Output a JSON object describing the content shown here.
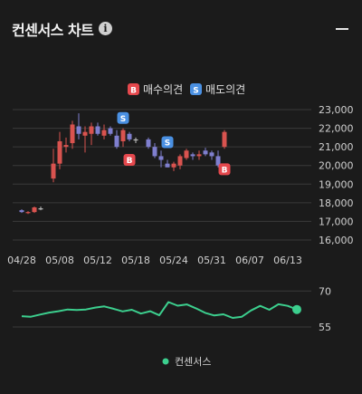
{
  "header": {
    "title": "컨센서스 차트",
    "info_icon": "info-icon",
    "collapse_icon": "minus-icon"
  },
  "colors": {
    "background": "#1b1b1b",
    "up": "#d9534f",
    "down": "#7f7fcf",
    "neutral": "#bdbdbd",
    "buy_marker": "#e5484d",
    "sell_marker": "#4a90e2",
    "consensus_line": "#3ccf8e",
    "grid": "#3a3a3a",
    "axis_text": "#d0d0d0"
  },
  "legend_top": [
    {
      "marker": "B",
      "label": "매수의견"
    },
    {
      "marker": "S",
      "label": "매도의견"
    }
  ],
  "legend_bottom": [
    {
      "label": "컨센서스"
    }
  ],
  "chart_data": [
    {
      "type": "candlestick",
      "y_ticks": [
        "23,000",
        "22,000",
        "21,000",
        "20,000",
        "19,000",
        "18,000",
        "17,000",
        "16,000"
      ],
      "y_tick_values": [
        23000,
        22000,
        21000,
        20000,
        19000,
        18000,
        17000,
        16000
      ],
      "ylim": [
        16000,
        23000
      ],
      "x_ticks": [
        "04/28",
        "05/08",
        "05/12",
        "05/18",
        "05/24",
        "05/31",
        "06/07",
        "06/13"
      ],
      "x_tick_index": [
        0,
        6,
        12,
        18,
        24,
        30,
        36,
        42
      ],
      "grid": true,
      "candles": [
        {
          "o": 17600,
          "h": 17650,
          "l": 17450,
          "c": 17500
        },
        {
          "o": 17450,
          "h": 17550,
          "l": 17400,
          "c": 17500
        },
        {
          "o": 17500,
          "h": 17800,
          "l": 17450,
          "c": 17750
        },
        {
          "o": 17700,
          "h": 17800,
          "l": 17600,
          "c": 17700
        },
        {
          "o": 19300,
          "h": 20900,
          "l": 19100,
          "c": 20100
        },
        {
          "o": 20100,
          "h": 21800,
          "l": 19800,
          "c": 21300
        },
        {
          "o": 21000,
          "h": 21500,
          "l": 20700,
          "c": 21100
        },
        {
          "o": 21200,
          "h": 22400,
          "l": 20900,
          "c": 22200
        },
        {
          "o": 22100,
          "h": 22800,
          "l": 21400,
          "c": 21700
        },
        {
          "o": 21600,
          "h": 22100,
          "l": 20700,
          "c": 21800
        },
        {
          "o": 21700,
          "h": 22300,
          "l": 21100,
          "c": 22100
        },
        {
          "o": 22100,
          "h": 22300,
          "l": 21600,
          "c": 21700
        },
        {
          "o": 21600,
          "h": 22200,
          "l": 21400,
          "c": 21900
        },
        {
          "o": 22000,
          "h": 22100,
          "l": 21600,
          "c": 21700
        },
        {
          "o": 21600,
          "h": 21900,
          "l": 20900,
          "c": 21000
        },
        {
          "o": 21300,
          "h": 22000,
          "l": 21000,
          "c": 21900
        },
        {
          "o": 21700,
          "h": 21800,
          "l": 21300,
          "c": 21400
        },
        {
          "o": 21400,
          "h": 21500,
          "l": 21200,
          "c": 21400
        },
        {
          "o": 21400,
          "h": 21500,
          "l": 20900,
          "c": 21000
        },
        {
          "o": 21000,
          "h": 21200,
          "l": 20400,
          "c": 20500
        },
        {
          "o": 20500,
          "h": 20800,
          "l": 19900,
          "c": 20300
        },
        {
          "o": 20100,
          "h": 20300,
          "l": 19900,
          "c": 19900
        },
        {
          "o": 19900,
          "h": 20200,
          "l": 19700,
          "c": 20100
        },
        {
          "o": 20000,
          "h": 20600,
          "l": 19800,
          "c": 20500
        },
        {
          "o": 20400,
          "h": 20900,
          "l": 20300,
          "c": 20800
        },
        {
          "o": 20600,
          "h": 20700,
          "l": 20300,
          "c": 20500
        },
        {
          "o": 20500,
          "h": 20800,
          "l": 20300,
          "c": 20600
        },
        {
          "o": 20800,
          "h": 20950,
          "l": 20500,
          "c": 20600
        },
        {
          "o": 20700,
          "h": 20800,
          "l": 20300,
          "c": 20500
        },
        {
          "o": 20500,
          "h": 20800,
          "l": 19900,
          "c": 20000
        },
        {
          "o": 21000,
          "h": 21900,
          "l": 20900,
          "c": 21800
        }
      ],
      "candle_index": [
        0,
        1,
        2,
        3,
        5,
        6,
        7,
        8,
        9,
        10,
        11,
        12,
        13,
        14,
        15,
        16,
        17,
        18,
        20,
        21,
        22,
        23,
        24,
        25,
        26,
        27,
        28,
        29,
        30,
        31,
        32
      ],
      "markers": [
        {
          "type": "S",
          "candle": 15,
          "price": 22550
        },
        {
          "type": "B",
          "candle": 16,
          "price": 20300
        },
        {
          "type": "S",
          "candle": 21,
          "price": 21250
        },
        {
          "type": "B",
          "candle": 30,
          "price": 19800
        }
      ]
    },
    {
      "type": "line",
      "series": [
        {
          "name": "컨센서스",
          "values": [
            59.5,
            59.3,
            60.2,
            61.0,
            61.6,
            62.3,
            62.1,
            62.3,
            63.1,
            63.6,
            62.6,
            61.5,
            62.2,
            60.6,
            61.6,
            59.9,
            65.4,
            63.9,
            64.4,
            62.8,
            60.9,
            59.8,
            60.3,
            58.8,
            59.3,
            61.9,
            63.8,
            62.2,
            64.5,
            63.8,
            62.3
          ]
        }
      ],
      "y_ticks": [
        "70",
        "55"
      ],
      "y_tick_values": [
        70,
        55
      ],
      "ylim": [
        52,
        72
      ]
    }
  ]
}
